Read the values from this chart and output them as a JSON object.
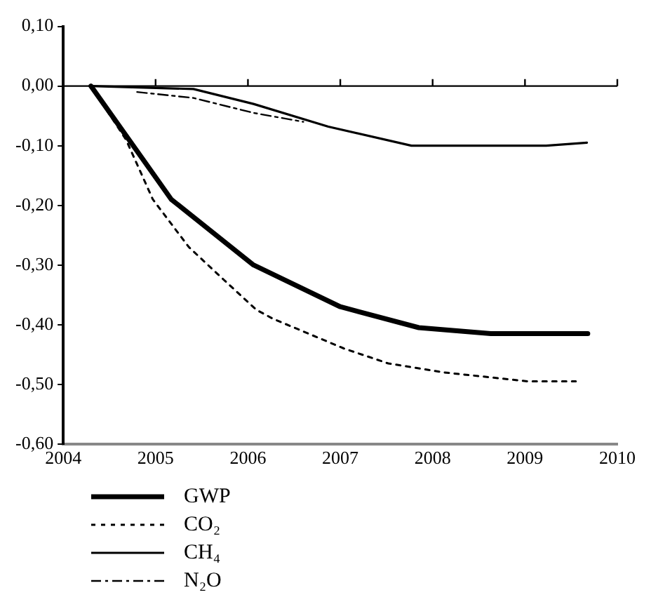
{
  "chart_data": {
    "type": "line",
    "xlim": [
      2004,
      2010
    ],
    "xticks": [
      2004,
      2005,
      2006,
      2007,
      2008,
      2009,
      2010
    ],
    "ylim": [
      -0.6,
      0.1
    ],
    "yticks": [
      {
        "value": 0.1,
        "label": "0,10"
      },
      {
        "value": 0,
        "label": "0,00"
      },
      {
        "value": -0.1,
        "label": "-0,10"
      },
      {
        "value": -0.2,
        "label": "-0,20"
      },
      {
        "value": -0.3,
        "label": "-0,30"
      },
      {
        "value": -0.4,
        "label": "-0,40"
      },
      {
        "value": -0.5,
        "label": "-0,50"
      },
      {
        "value": -0.6,
        "label": "-0,60"
      }
    ],
    "grid": false,
    "legend": "bottom left",
    "marker": "none",
    "ref_lines": [
      {
        "axis": "y",
        "value": 0
      }
    ],
    "series": [
      {
        "name": "GWP",
        "color": "#000000",
        "line_style": "solid",
        "x": [
          2004.3,
          2005.17,
          2006.06,
          2007.0,
          2007.85,
          2008.63,
          2009.68
        ],
        "values": [
          0,
          -0.19,
          -0.3,
          -0.37,
          -0.405,
          -0.415,
          -0.415
        ]
      },
      {
        "name": "CO₂",
        "color": "#000000",
        "line_style": "dotted",
        "x": [
          2004.3,
          2004.68,
          2004.97,
          2005.36,
          2005.74,
          2006.09,
          2006.27,
          2007.04,
          2007.52,
          2008.12,
          2009.03,
          2009.55
        ],
        "values": [
          0,
          -0.09,
          -0.19,
          -0.27,
          -0.325,
          -0.375,
          -0.39,
          -0.44,
          -0.465,
          -0.48,
          -0.495,
          -0.495
        ]
      },
      {
        "name": "CH₄",
        "color": "#000000",
        "line_style": "solid",
        "x": [
          2004.3,
          2005.41,
          2006.06,
          2006.87,
          2007.77,
          2009.23,
          2009.67
        ],
        "values": [
          0,
          -0.005,
          -0.03,
          -0.068,
          -0.1,
          -0.1,
          -0.095
        ]
      },
      {
        "name": "N₂O",
        "color": "#000000",
        "line_style": "dashed",
        "x": [
          2004.8,
          2005.41,
          2006.06,
          2006.6
        ],
        "values": [
          -0.01,
          -0.02,
          -0.045,
          -0.06
        ]
      }
    ]
  }
}
